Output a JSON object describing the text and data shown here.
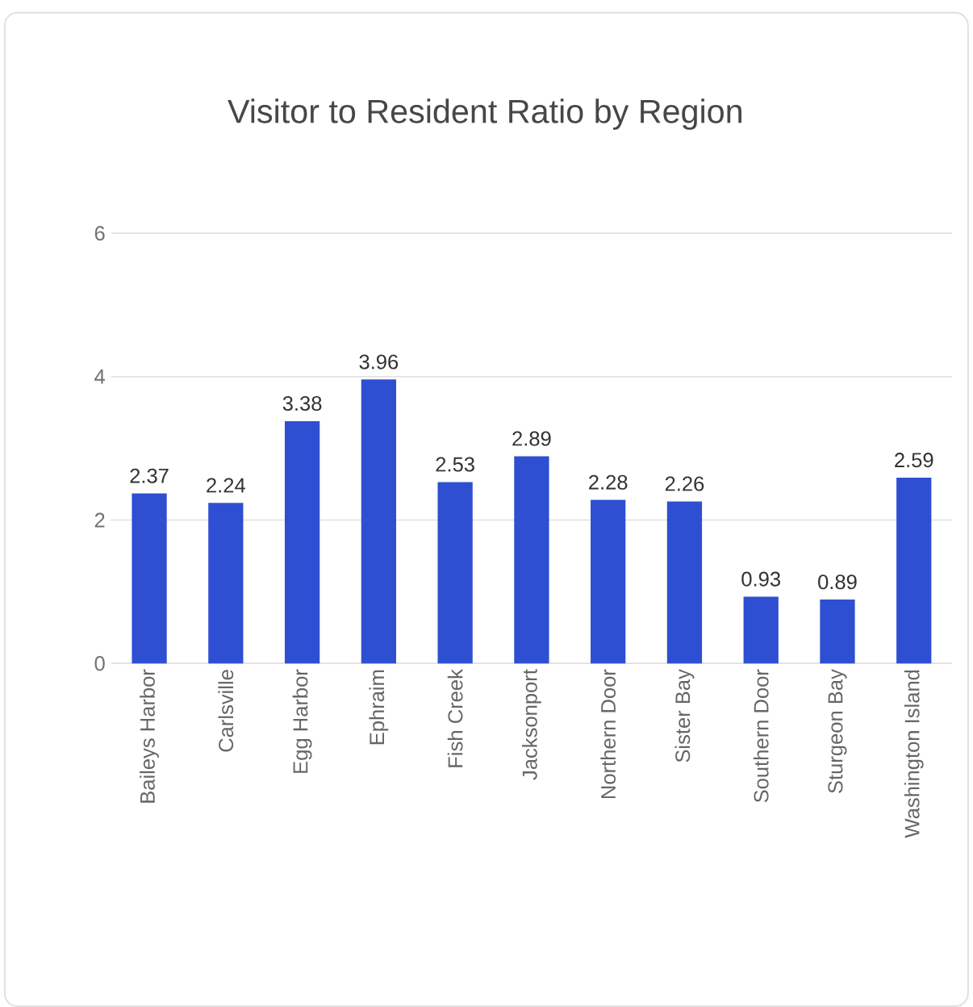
{
  "chart_data": {
    "type": "bar",
    "title": "Visitor to Resident Ratio by Region",
    "categories": [
      "Baileys Harbor",
      "Carlsville",
      "Egg Harbor",
      "Ephraim",
      "Fish Creek",
      "Jacksonport",
      "Northern Door",
      "Sister Bay",
      "Southern Door",
      "Sturgeon Bay",
      "Washington Island"
    ],
    "values": [
      2.37,
      2.24,
      3.38,
      3.96,
      2.53,
      2.89,
      2.28,
      2.26,
      0.93,
      0.89,
      2.59
    ],
    "color": "#2e4fd1",
    "ylim": [
      0,
      6
    ],
    "yticks": [
      0,
      2,
      4,
      6
    ],
    "grid": "y",
    "data_labels": true
  }
}
